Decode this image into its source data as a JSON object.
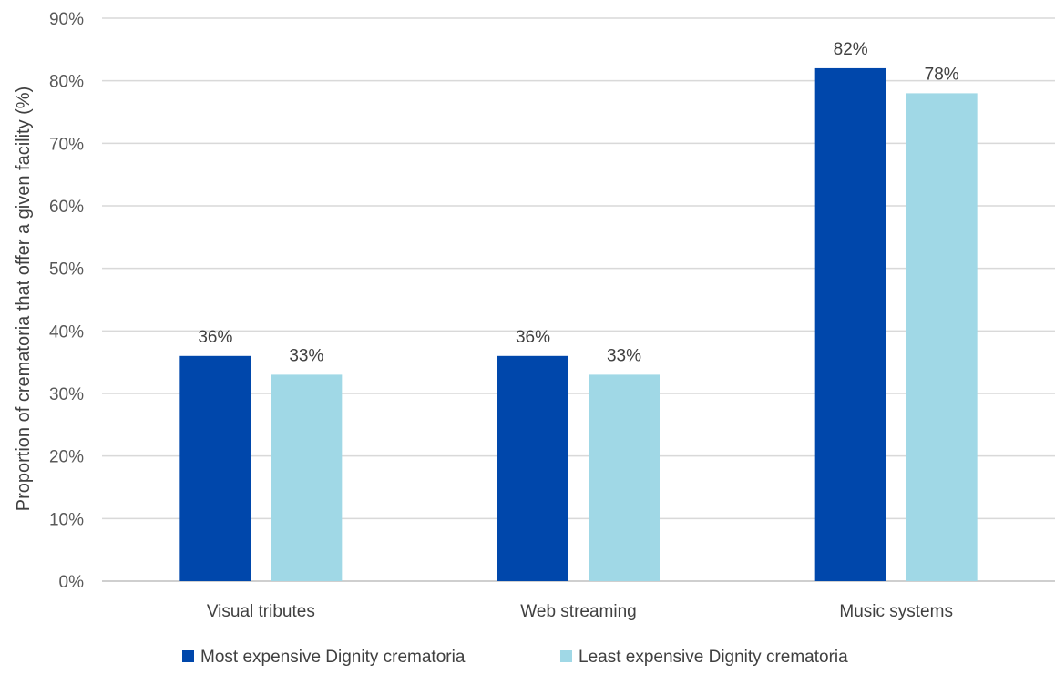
{
  "chart_data": {
    "type": "bar",
    "title": "",
    "xlabel": "",
    "ylabel": "Proportion of crematoria that offer a given facility (%)",
    "ylim": [
      0,
      90
    ],
    "ytick_step": 10,
    "ytick_suffix": "%",
    "grid": true,
    "legend_position": "bottom",
    "categories": [
      "Visual tributes",
      "Web streaming",
      "Music systems"
    ],
    "series": [
      {
        "name": "Most expensive Dignity crematoria",
        "color": "#0047AB",
        "values": [
          36,
          36,
          82
        ]
      },
      {
        "name": "Least expensive Dignity crematoria",
        "color": "#A0D8E6",
        "values": [
          33,
          33,
          78
        ]
      }
    ],
    "data_labels": [
      [
        "36%",
        "36%",
        "82%"
      ],
      [
        "33%",
        "33%",
        "78%"
      ]
    ]
  }
}
